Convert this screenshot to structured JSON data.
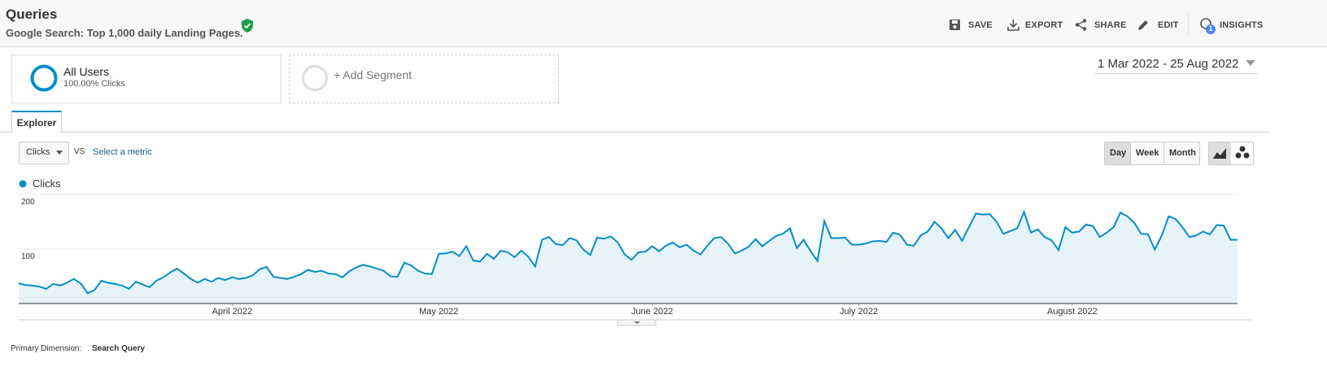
{
  "header": {
    "title": "Queries",
    "subtitle": "Google Search: Top 1,000 daily Landing Pages."
  },
  "toolbar": [
    "SAVE",
    "EXPORT",
    "SHARE",
    "EDIT",
    "INSIGHTS"
  ],
  "insights_badge": "1",
  "segments": {
    "active": {
      "name": "All Users",
      "detail": "100.00% Clicks"
    },
    "add": "+ Add Segment"
  },
  "date_range": "1 Mar 2022 - 25 Aug 2022",
  "tab": "Explorer",
  "metric": {
    "selected": "Clicks",
    "vs": "VS",
    "other": "Select a metric"
  },
  "granularity": [
    "Day",
    "Week",
    "Month"
  ],
  "primary_dimension": {
    "label": "Primary Dimension:",
    "value": "Search Query"
  },
  "chart_data": {
    "type": "line",
    "series": [
      {
        "name": "Clicks",
        "color": "#058dc7",
        "values": [
          37,
          34,
          33,
          31,
          27,
          36,
          33,
          38,
          45,
          37,
          19,
          25,
          42,
          38,
          36,
          33,
          27,
          40,
          35,
          30,
          42,
          48,
          57,
          64,
          55,
          45,
          38,
          45,
          40,
          47,
          43,
          48,
          45,
          47,
          52,
          63,
          67,
          49,
          47,
          45,
          49,
          54,
          62,
          58,
          60,
          55,
          54,
          48,
          59,
          66,
          71,
          68,
          64,
          60,
          50,
          49,
          75,
          70,
          60,
          55,
          54,
          91,
          92,
          95,
          87,
          105,
          79,
          77,
          91,
          82,
          97,
          94,
          85,
          97,
          86,
          68,
          117,
          122,
          109,
          107,
          120,
          116,
          99,
          89,
          121,
          119,
          123,
          112,
          90,
          80,
          94,
          95,
          105,
          96,
          106,
          112,
          103,
          108,
          97,
          90,
          106,
          120,
          122,
          110,
          92,
          97,
          104,
          118,
          105,
          115,
          124,
          128,
          138,
          102,
          117,
          96,
          78,
          151,
          120,
          120,
          121,
          108,
          108,
          110,
          114,
          115,
          113,
          130,
          126,
          108,
          106,
          125,
          132,
          150,
          138,
          120,
          135,
          115,
          140,
          165,
          163,
          164,
          150,
          128,
          133,
          138,
          168,
          130,
          136,
          122,
          116,
          98,
          140,
          130,
          132,
          145,
          142,
          122,
          130,
          140,
          167,
          160,
          148,
          128,
          127,
          99,
          125,
          160,
          155,
          140,
          122,
          125,
          132,
          127,
          144,
          143,
          117,
          117
        ]
      }
    ],
    "xlim": [
      0,
      177
    ],
    "xticks": [
      {
        "value": 31,
        "label": "April 2022"
      },
      {
        "value": 61,
        "label": "May 2022"
      },
      {
        "value": 92,
        "label": "June 2022"
      },
      {
        "value": 122,
        "label": "July 2022"
      },
      {
        "value": 153,
        "label": "August 2022"
      }
    ],
    "ylim": [
      0,
      200
    ],
    "yticks": [
      100,
      200
    ],
    "grid": true,
    "fill": "#e6f3f9"
  }
}
